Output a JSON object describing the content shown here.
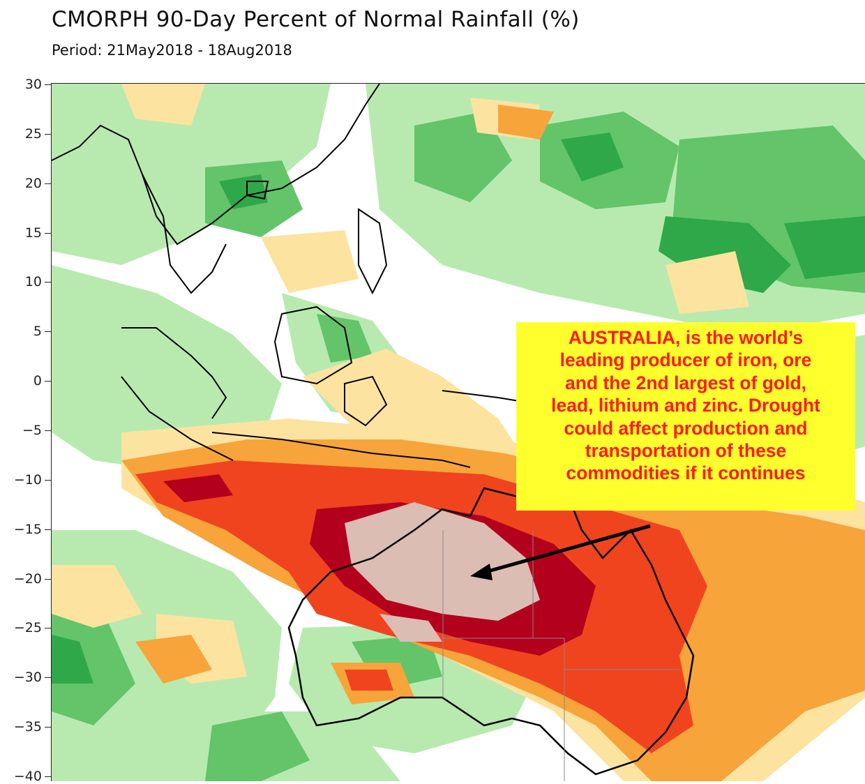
{
  "title": "CMORPH 90-Day Percent of Normal Rainfall (%)",
  "subtitle": "Period: 21May2018 - 18Aug2018",
  "latitude_axis": {
    "labels": [
      "30",
      "25",
      "20",
      "15",
      "10",
      "5",
      "0",
      "−5",
      "−10",
      "−15",
      "−20",
      "−25",
      "−30",
      "−35",
      "−40"
    ],
    "values": [
      30,
      25,
      20,
      15,
      10,
      5,
      0,
      -5,
      -10,
      -15,
      -20,
      -25,
      -30,
      -35,
      -40
    ]
  },
  "callout": {
    "lines": [
      "AUSTRALIA,  is the world’s",
      "leading producer of iron, ore",
      "and the 2nd largest of gold,",
      "lead, lithium and zinc. Drought",
      "could affect production and",
      "transportation of these",
      "commodities if it continues"
    ]
  },
  "colors": {
    "wet_strong": "#2fa84a",
    "wet_moderate": "#63c46a",
    "wet_light": "#b8eab0",
    "dry_light": "#fde3a0",
    "dry_moderate": "#f7a43b",
    "dry_strong": "#f0441f",
    "dry_extreme": "#b3001c",
    "dry_severe_core": "#dcbdb3",
    "callout_background": "#ffff2e",
    "callout_text": "#ff1a1a"
  }
}
